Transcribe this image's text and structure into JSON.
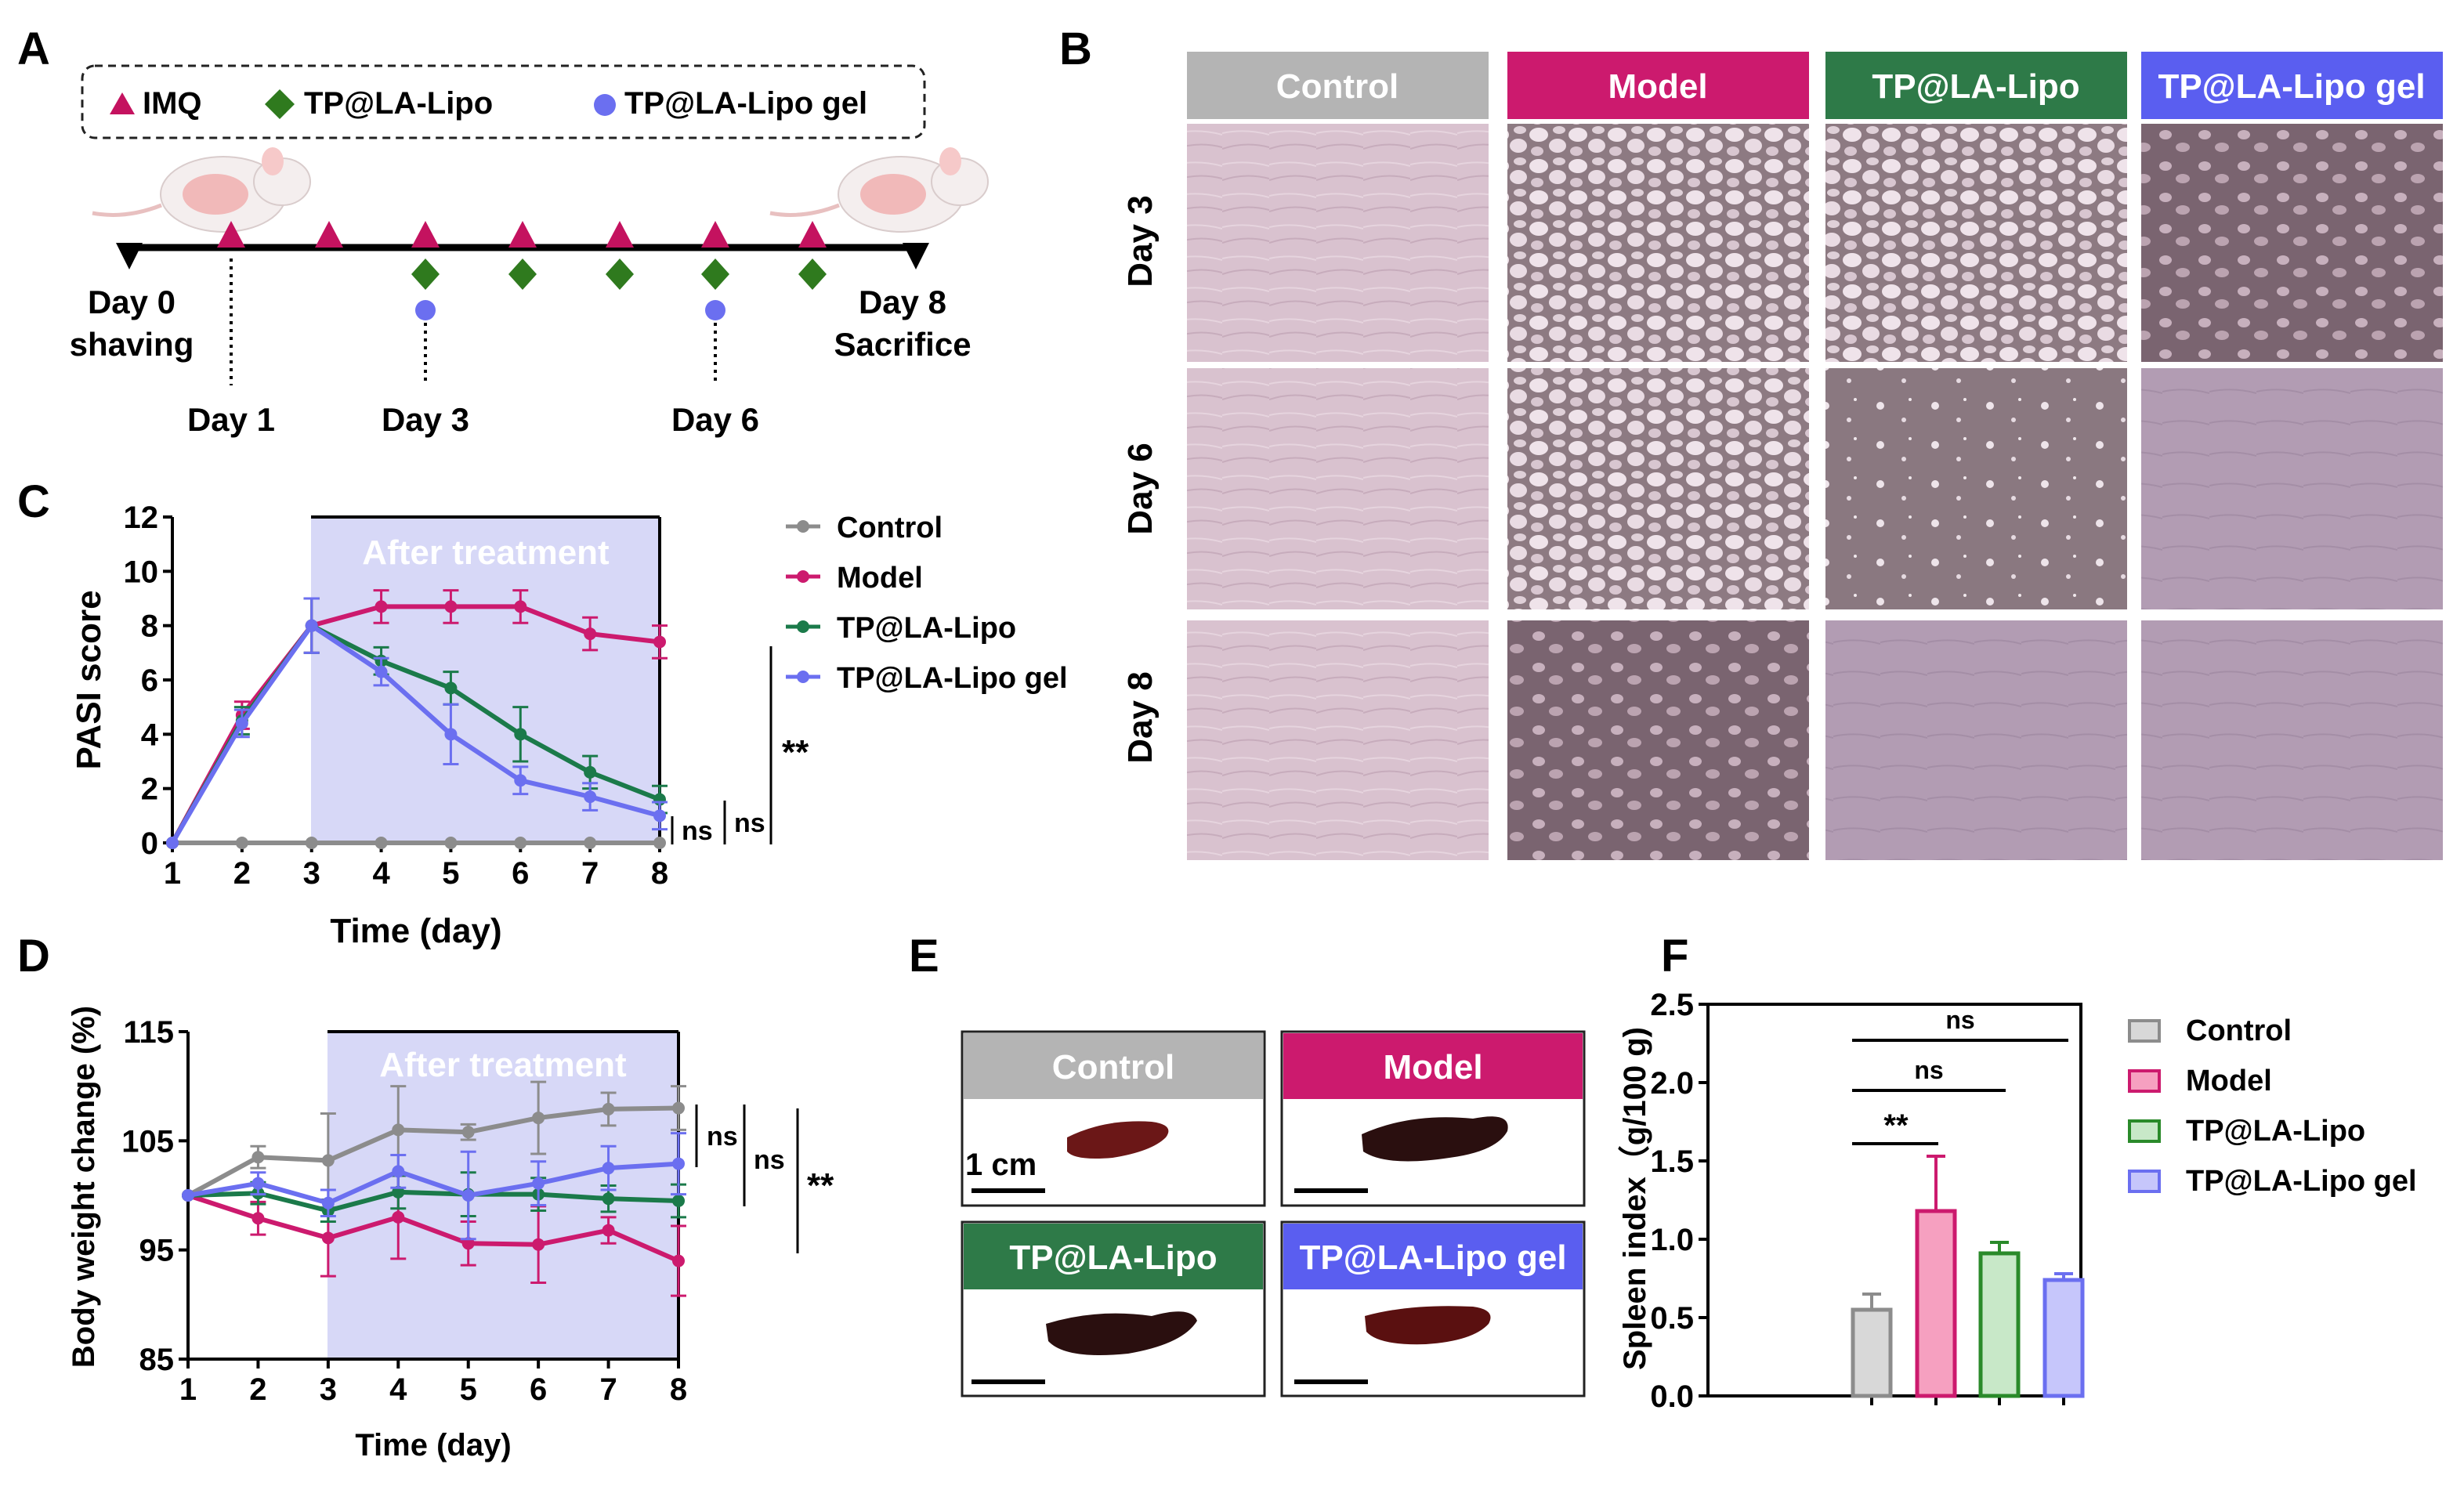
{
  "panels": {
    "a": "A",
    "b": "B",
    "c": "C",
    "d": "D",
    "e": "E",
    "f": "F"
  },
  "colors": {
    "control": "#8c8c8c",
    "model": "#cc1a6e",
    "tp": "#1b7a4a",
    "gel": "#6b6ff0",
    "imq": "#c4125f",
    "tp_marker": "#2f7a1e",
    "shade": "#d7d8f7"
  },
  "timeline": {
    "legend": {
      "imq": "IMQ",
      "tp": "TP@LA-Lipo",
      "gel": "TP@LA-Lipo gel"
    },
    "day0": "Day 0",
    "shaving": "shaving",
    "day8": "Day 8",
    "sacrifice": "Sacrifice",
    "day1": "Day 1",
    "day3": "Day 3",
    "day6": "Day 6"
  },
  "photos": {
    "columns": [
      "Control",
      "Model",
      "TP@LA-Lipo",
      "TP@LA-Lipo gel"
    ],
    "rows": [
      "Day 3",
      "Day 6",
      "Day 8"
    ]
  },
  "spleen_photos": {
    "labels": [
      "Control",
      "Model",
      "TP@LA-Lipo",
      "TP@LA-Lipo gel"
    ],
    "scale": "1 cm"
  },
  "chart_data": [
    {
      "id": "C",
      "type": "line",
      "xlabel": "Time (day)",
      "ylabel": "PASI score",
      "shade_label": "After treatment",
      "x": [
        1,
        2,
        3,
        4,
        5,
        6,
        7,
        8
      ],
      "xlim": [
        1,
        8
      ],
      "ylim": [
        0,
        12
      ],
      "yticks": [
        0,
        2,
        4,
        6,
        8,
        10,
        12
      ],
      "series": [
        {
          "name": "Control",
          "x": [
            1,
            2,
            3,
            4,
            5,
            6,
            7,
            8
          ],
          "values": [
            0,
            0,
            0,
            0,
            0,
            0,
            0,
            0
          ],
          "err": [
            0,
            0,
            0,
            0,
            0,
            0,
            0,
            0
          ]
        },
        {
          "name": "Model",
          "x": [
            1,
            2,
            3,
            4,
            5,
            6,
            7,
            8
          ],
          "values": [
            0,
            4.7,
            8.0,
            8.7,
            8.7,
            8.7,
            7.7,
            7.4
          ],
          "err": [
            0,
            0.5,
            1.0,
            0.6,
            0.6,
            0.6,
            0.6,
            0.6
          ]
        },
        {
          "name": "TP@LA-Lipo",
          "x": [
            1,
            2,
            3,
            4,
            5,
            6,
            7,
            8
          ],
          "values": [
            0,
            4.5,
            8.0,
            6.7,
            5.7,
            4.0,
            2.6,
            1.6
          ],
          "err": [
            0,
            0.5,
            1.0,
            0.5,
            0.6,
            1.0,
            0.6,
            0.5
          ]
        },
        {
          "name": "TP@LA-Lipo gel",
          "x": [
            1,
            2,
            3,
            4,
            5,
            6,
            7,
            8
          ],
          "values": [
            0,
            4.4,
            8.0,
            6.3,
            4.0,
            2.3,
            1.7,
            1.0
          ],
          "err": [
            0,
            0.5,
            1.0,
            0.5,
            1.1,
            0.5,
            0.5,
            0.5
          ]
        }
      ],
      "sig": [
        "ns",
        "ns",
        "**"
      ]
    },
    {
      "id": "D",
      "type": "line",
      "xlabel": "Time (day)",
      "ylabel": "Body weight change (%)",
      "shade_label": "After treatment",
      "x": [
        1,
        2,
        3,
        4,
        5,
        6,
        7,
        8
      ],
      "xlim": [
        1,
        8
      ],
      "ylim": [
        85,
        115
      ],
      "yticks": [
        85,
        95,
        105,
        115
      ],
      "series": [
        {
          "name": "Control",
          "x": [
            1,
            2,
            3,
            4,
            5,
            6,
            7,
            8
          ],
          "values": [
            100,
            103.5,
            103.2,
            106,
            105.8,
            107.1,
            107.9,
            108
          ],
          "err": [
            0,
            1.0,
            4.3,
            4.0,
            0.7,
            3.3,
            1.5,
            2.0
          ]
        },
        {
          "name": "Model",
          "x": [
            1,
            2,
            3,
            4,
            5,
            6,
            7,
            8
          ],
          "values": [
            100,
            97.9,
            96.1,
            98.0,
            95.6,
            95.5,
            96.8,
            94
          ],
          "err": [
            0,
            1.5,
            3.5,
            3.8,
            2.0,
            3.5,
            1.2,
            3.2
          ]
        },
        {
          "name": "TP@LA-Lipo",
          "x": [
            1,
            2,
            3,
            4,
            5,
            6,
            7,
            8
          ],
          "values": [
            100,
            100.2,
            98.6,
            100.3,
            100.1,
            100.1,
            99.7,
            99.5
          ],
          "err": [
            0,
            1.0,
            1.0,
            1.5,
            2.0,
            1.5,
            1.2,
            1.5
          ]
        },
        {
          "name": "TP@LA-Lipo gel",
          "x": [
            1,
            2,
            3,
            4,
            5,
            6,
            7,
            8
          ],
          "values": [
            100,
            101.1,
            99.3,
            102.2,
            100.0,
            101.1,
            102.5,
            102.9
          ],
          "err": [
            0,
            1.0,
            1.2,
            1.5,
            4.0,
            2.0,
            2.0,
            2.8
          ]
        }
      ],
      "sig": [
        "ns",
        "ns",
        "**"
      ]
    },
    {
      "id": "F",
      "type": "bar",
      "ylabel": "Spleen index（g/100 g)",
      "categories": [
        "Control",
        "Model",
        "TP@LA-Lipo",
        "TP@LA-Lipo gel"
      ],
      "values": [
        0.55,
        1.18,
        0.91,
        0.74
      ],
      "err": [
        0.1,
        0.35,
        0.07,
        0.04
      ],
      "ylim": [
        0,
        2.5
      ],
      "yticks": [
        0.0,
        0.5,
        1.0,
        1.5,
        2.0,
        2.5
      ],
      "sig": [
        "**",
        "ns",
        "ns"
      ]
    }
  ]
}
